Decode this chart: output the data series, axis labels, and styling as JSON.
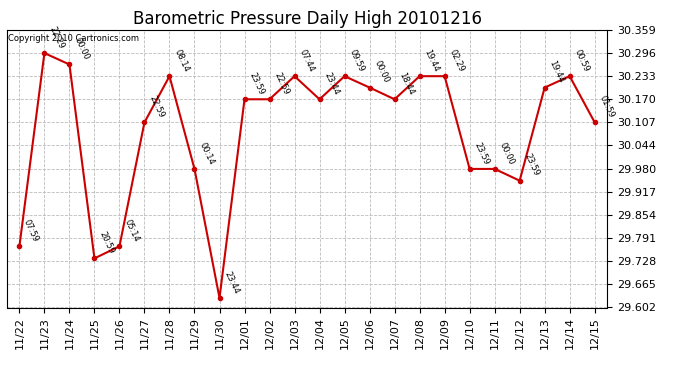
{
  "title": "Barometric Pressure Daily High 20101216",
  "copyright": "Copyright 2010 Cartronics.com",
  "x_labels": [
    "11/22",
    "11/23",
    "11/24",
    "11/25",
    "11/26",
    "11/27",
    "11/28",
    "11/29",
    "11/30",
    "12/01",
    "12/02",
    "12/03",
    "12/04",
    "12/05",
    "12/06",
    "12/07",
    "12/08",
    "12/09",
    "12/10",
    "12/11",
    "12/12",
    "12/13",
    "12/14",
    "12/15"
  ],
  "y_values": [
    29.769,
    30.296,
    30.265,
    29.736,
    29.769,
    30.107,
    30.233,
    29.98,
    29.628,
    30.17,
    30.17,
    30.233,
    30.17,
    30.233,
    30.202,
    30.17,
    30.233,
    30.233,
    29.98,
    29.98,
    29.948,
    30.202,
    30.233,
    30.107
  ],
  "time_labels": [
    "07:59",
    "22:29",
    "00:00",
    "20:59",
    "05:14",
    "22:59",
    "08:14",
    "00:14",
    "23:44",
    "23:59",
    "22:59",
    "07:44",
    "23:44",
    "09:59",
    "00:00",
    "18:44",
    "19:44",
    "02:29",
    "23:59",
    "00:00",
    "23:59",
    "19:44",
    "00:59",
    "01:59"
  ],
  "y_tick_vals": [
    29.602,
    29.665,
    29.728,
    29.791,
    29.854,
    29.917,
    29.98,
    30.044,
    30.107,
    30.17,
    30.233,
    30.296,
    30.359
  ],
  "y_min": 29.602,
  "y_max": 30.359,
  "line_color": "#cc0000",
  "marker_color": "#cc0000",
  "bg_color": "#ffffff",
  "grid_color": "#bbbbbb",
  "title_fontsize": 12,
  "tick_fontsize": 8,
  "label_fontsize": 6,
  "fig_width": 6.9,
  "fig_height": 3.75
}
